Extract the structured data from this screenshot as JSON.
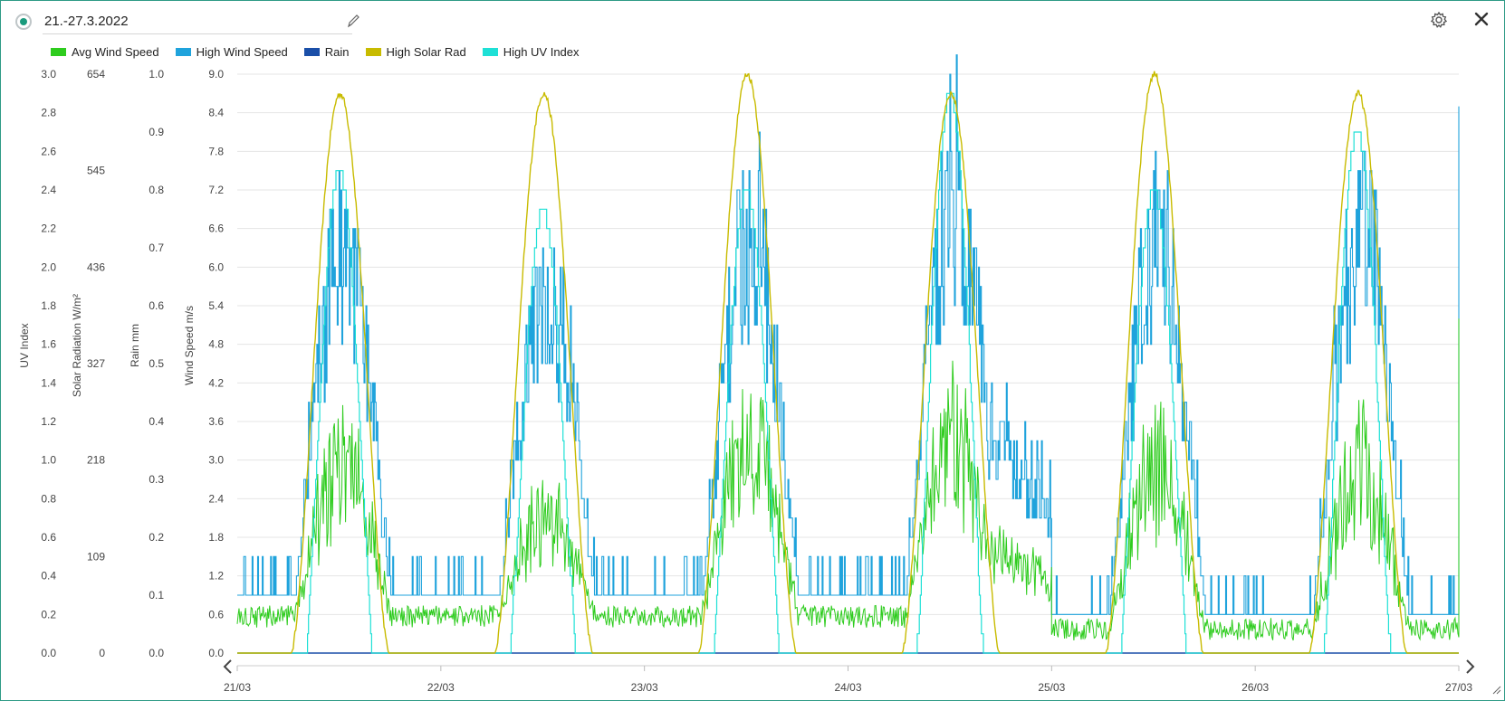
{
  "header": {
    "title": "21.-27.3.2022"
  },
  "icons": {
    "radio": "radio-selected-icon",
    "edit": "pencil-icon",
    "settings": "gear-icon",
    "close": "close-icon",
    "prev": "chevron-left-icon",
    "next": "chevron-right-icon",
    "resize": "resize-handle-icon"
  },
  "colors": {
    "avg_wind": "#2ecc1e",
    "high_wind": "#1fa3dc",
    "rain": "#1a4fa8",
    "solar": "#c8bb00",
    "uv": "#1ee0d6",
    "accent": "#1a9b7d"
  },
  "chart_data": {
    "type": "line",
    "legend_placement": "top-left",
    "grid": true,
    "legend": [
      {
        "name": "Avg Wind Speed",
        "color": "#2ecc1e"
      },
      {
        "name": "High Wind Speed",
        "color": "#1fa3dc"
      },
      {
        "name": "Rain",
        "color": "#1a4fa8"
      },
      {
        "name": "High Solar Rad",
        "color": "#c8bb00"
      },
      {
        "name": "High UV Index",
        "color": "#1ee0d6"
      }
    ],
    "x_ticks": [
      "21/03",
      "22/03",
      "23/03",
      "24/03",
      "25/03",
      "26/03",
      "27/03"
    ],
    "axes": [
      {
        "label": "UV Index",
        "range": [
          0,
          3.0
        ],
        "ticks": [
          "0.0",
          "0.2",
          "0.4",
          "0.6",
          "0.8",
          "1.0",
          "1.2",
          "1.4",
          "1.6",
          "1.8",
          "2.0",
          "2.2",
          "2.4",
          "2.6",
          "2.8",
          "3.0"
        ]
      },
      {
        "label": "Solar Radiation W/m²",
        "range": [
          0,
          654
        ],
        "ticks": [
          "0",
          "109",
          "218",
          "327",
          "436",
          "545",
          "654"
        ]
      },
      {
        "label": "Rain mm",
        "range": [
          0,
          1.0
        ],
        "ticks": [
          "0.0",
          "0.1",
          "0.2",
          "0.3",
          "0.4",
          "0.5",
          "0.6",
          "0.7",
          "0.8",
          "0.9",
          "1.0"
        ]
      },
      {
        "label": "Wind Speed m/s",
        "range": [
          0,
          9.0
        ],
        "ticks": [
          "0.0",
          "0.6",
          "1.2",
          "1.8",
          "2.4",
          "3.0",
          "3.6",
          "4.2",
          "4.8",
          "5.4",
          "6.0",
          "6.6",
          "7.2",
          "7.8",
          "8.4",
          "9.0"
        ]
      }
    ],
    "daily_profile": {
      "days": [
        "21/03",
        "22/03",
        "23/03",
        "24/03",
        "25/03",
        "26/03"
      ],
      "high_solar_rad_peak": [
        632,
        632,
        654,
        632,
        654,
        632
      ],
      "high_uv_index_peak": [
        2.5,
        2.3,
        2.4,
        2.9,
        2.4,
        2.7
      ],
      "high_wind_speed_peak": [
        7.6,
        6.9,
        8.0,
        8.9,
        8.0,
        8.0
      ],
      "avg_wind_speed_peak": [
        4.2,
        3.0,
        4.8,
        4.8,
        4.2,
        4.2
      ],
      "night_high_wind": [
        0.9,
        0.9,
        0.9,
        0.9,
        0.6,
        0.6
      ],
      "night_avg_wind": [
        0.5,
        0.5,
        0.5,
        0.5,
        0.3,
        0.3
      ],
      "end_high_wind": 8.5,
      "end_avg_wind": 5.2
    },
    "rain": {
      "values": [
        0.0
      ],
      "note_value": 0.0
    }
  }
}
